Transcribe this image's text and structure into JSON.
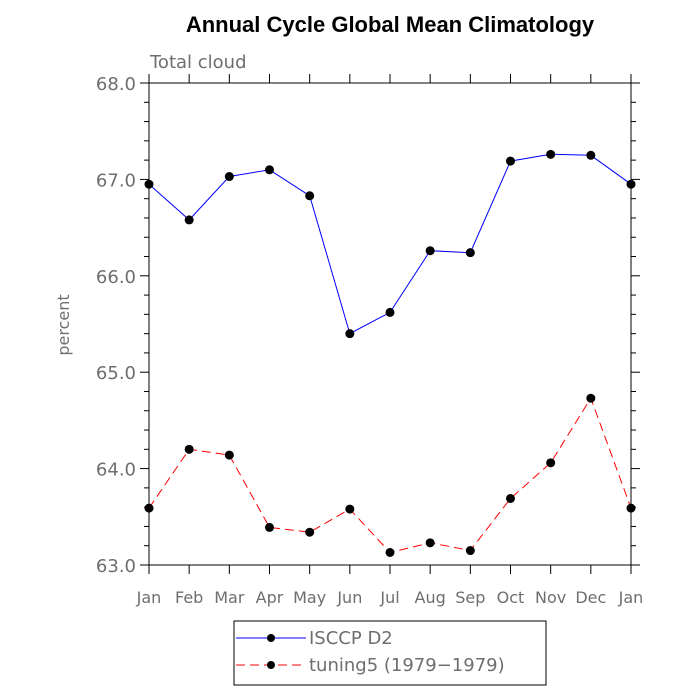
{
  "chart_data": {
    "type": "line",
    "title": "Annual Cycle Global Mean Climatology",
    "subtitle": "Total cloud",
    "ylabel": "percent",
    "xlabel": "",
    "ylim": [
      63.0,
      68.0
    ],
    "yticks": [
      "63.0",
      "64.0",
      "65.0",
      "66.0",
      "67.0",
      "68.0"
    ],
    "categories": [
      "Jan",
      "Feb",
      "Mar",
      "Apr",
      "May",
      "Jun",
      "Jul",
      "Aug",
      "Sep",
      "Oct",
      "Nov",
      "Dec",
      "Jan"
    ],
    "series": [
      {
        "name": "ISCCP D2",
        "color": "#0000ff",
        "dash": "solid",
        "values": [
          66.95,
          66.58,
          67.03,
          67.1,
          66.83,
          65.4,
          65.62,
          66.26,
          66.24,
          67.19,
          67.26,
          67.25,
          66.95
        ]
      },
      {
        "name": "tuning5 (1979−1979)",
        "color": "#ff0000",
        "dash": "dashed",
        "values": [
          63.59,
          64.2,
          64.14,
          63.39,
          63.34,
          63.58,
          63.13,
          63.23,
          63.15,
          63.69,
          64.06,
          64.73,
          63.59
        ]
      }
    ],
    "grid": false,
    "legend_position": "bottom"
  }
}
